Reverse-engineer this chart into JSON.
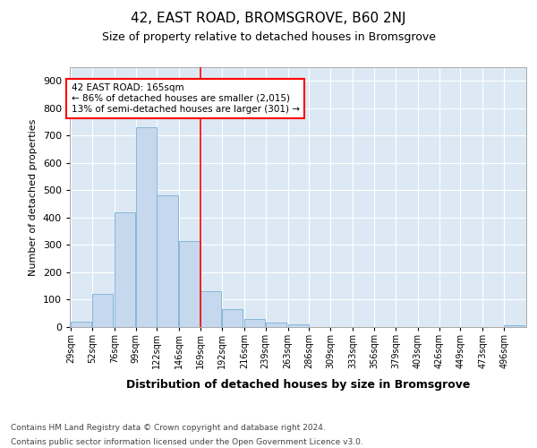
{
  "title": "42, EAST ROAD, BROMSGROVE, B60 2NJ",
  "subtitle": "Size of property relative to detached houses in Bromsgrove",
  "xlabel": "Distribution of detached houses by size in Bromsgrove",
  "ylabel": "Number of detached properties",
  "footnote1": "Contains HM Land Registry data © Crown copyright and database right 2024.",
  "footnote2": "Contains public sector information licensed under the Open Government Licence v3.0.",
  "annotation_line1": "42 EAST ROAD: 165sqm",
  "annotation_line2": "← 86% of detached houses are smaller (2,015)",
  "annotation_line3": "13% of semi-detached houses are larger (301) →",
  "red_line_x": 169,
  "bar_color": "#c5d8ee",
  "bar_edge_color": "#7bafd4",
  "plot_background": "#dce9f5",
  "categories": [
    "29sqm",
    "52sqm",
    "76sqm",
    "99sqm",
    "122sqm",
    "146sqm",
    "169sqm",
    "192sqm",
    "216sqm",
    "239sqm",
    "263sqm",
    "286sqm",
    "309sqm",
    "333sqm",
    "356sqm",
    "379sqm",
    "403sqm",
    "426sqm",
    "449sqm",
    "473sqm",
    "496sqm"
  ],
  "bin_left_edges": [
    29,
    52,
    76,
    99,
    122,
    146,
    169,
    192,
    216,
    239,
    263,
    286,
    309,
    333,
    356,
    379,
    403,
    426,
    449,
    473,
    496
  ],
  "bin_width": 23,
  "values": [
    20,
    120,
    420,
    730,
    480,
    315,
    132,
    65,
    30,
    18,
    10,
    0,
    0,
    0,
    0,
    0,
    0,
    0,
    0,
    0,
    8
  ],
  "ylim_max": 950,
  "yticks": [
    0,
    100,
    200,
    300,
    400,
    500,
    600,
    700,
    800,
    900
  ]
}
